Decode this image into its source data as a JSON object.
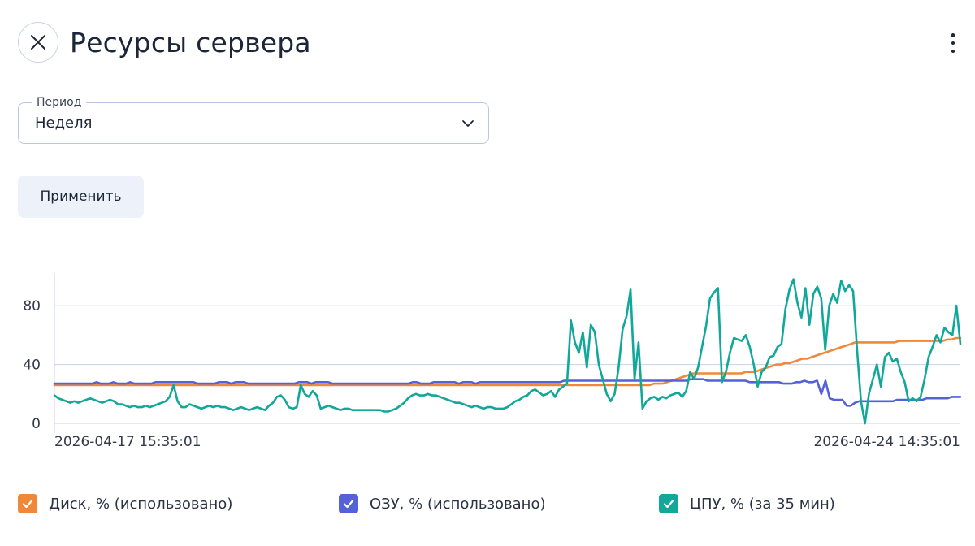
{
  "header": {
    "title": "Ресурсы сервера"
  },
  "period": {
    "legend": "Период",
    "value": "Неделя"
  },
  "apply_label": "Применить",
  "colors": {
    "disk": "#f0883a",
    "ram": "#5461d8",
    "cpu": "#11a89a",
    "grid": "#c6d3e6",
    "axis": "#333a48"
  },
  "legend": [
    {
      "label": "Диск, % (использовано)",
      "color": "#f0883a",
      "checked": true
    },
    {
      "label": "ОЗУ, % (использовано)",
      "color": "#5461d8",
      "checked": true
    },
    {
      "label": "ЦПУ, % (за 35 мин)",
      "color": "#11a89a",
      "checked": true
    }
  ],
  "chart_data": {
    "type": "line",
    "ylim": [
      0,
      100
    ],
    "yticks": [
      0,
      40,
      80
    ],
    "x_start_label": "2026-04-17 15:35:01",
    "x_end_label": "2026-04-24 14:35:01",
    "grid": "horizontal",
    "legend_position": "bottom",
    "sample_interval": "35 min",
    "series": [
      {
        "name": "Диск, % (использовано)",
        "color": "#f0883a",
        "values": [
          26,
          26,
          26,
          26,
          26,
          26,
          26,
          26,
          26,
          26,
          26,
          26,
          26,
          26,
          26,
          26,
          26,
          26,
          26,
          26,
          26,
          26,
          26,
          26,
          26,
          26,
          26,
          26,
          26,
          26,
          26,
          26,
          26,
          26,
          26,
          26,
          26,
          26,
          26,
          26,
          26,
          26,
          26,
          26,
          26,
          26,
          26,
          26,
          26,
          26,
          26,
          26,
          26,
          26,
          26,
          26,
          26,
          26,
          26,
          26,
          26,
          26,
          26,
          26,
          26,
          26,
          26,
          26,
          26,
          26,
          26,
          26,
          26,
          26,
          26,
          26,
          26,
          26,
          26,
          26,
          26,
          26,
          26,
          26,
          26,
          26,
          26,
          26,
          26,
          26,
          26,
          26,
          26,
          26,
          26,
          26,
          26,
          26,
          26,
          26,
          26,
          26,
          26,
          26,
          26,
          26,
          26,
          26,
          26,
          26,
          26,
          26,
          26,
          26,
          26,
          26,
          26,
          26,
          26,
          26,
          26,
          26,
          26,
          26,
          26,
          26,
          26,
          26,
          26,
          26,
          26,
          26,
          26,
          26,
          26,
          26,
          26,
          27,
          27,
          27,
          28,
          29,
          30,
          31,
          32,
          33,
          34,
          34,
          34,
          34,
          34,
          34,
          34,
          34,
          34,
          34,
          34,
          34,
          35,
          35,
          35,
          36,
          37,
          38,
          39,
          40,
          40,
          41,
          41,
          42,
          43,
          44,
          44,
          45,
          46,
          47,
          48,
          49,
          50,
          51,
          52,
          53,
          54,
          55,
          55,
          55,
          55,
          55,
          55,
          55,
          55,
          55,
          55,
          56,
          56,
          56,
          56,
          56,
          56,
          56,
          56,
          56,
          56,
          56,
          57,
          57,
          58,
          58
        ]
      },
      {
        "name": "ОЗУ, % (использовано)",
        "color": "#5461d8",
        "values": [
          27,
          27,
          27,
          27,
          27,
          27,
          27,
          27,
          27,
          27,
          28,
          27,
          27,
          27,
          28,
          27,
          27,
          27,
          28,
          27,
          27,
          27,
          27,
          27,
          28,
          28,
          28,
          28,
          28,
          28,
          28,
          28,
          28,
          28,
          27,
          27,
          27,
          27,
          27,
          28,
          28,
          28,
          27,
          28,
          28,
          28,
          27,
          27,
          27,
          27,
          27,
          27,
          27,
          27,
          27,
          27,
          27,
          27,
          28,
          28,
          28,
          27,
          28,
          28,
          28,
          28,
          27,
          27,
          27,
          27,
          27,
          27,
          27,
          27,
          27,
          27,
          27,
          27,
          27,
          27,
          27,
          27,
          27,
          27,
          27,
          28,
          28,
          27,
          27,
          27,
          28,
          28,
          28,
          28,
          28,
          28,
          27,
          28,
          28,
          28,
          27,
          28,
          28,
          28,
          28,
          28,
          28,
          28,
          28,
          28,
          28,
          28,
          28,
          28,
          28,
          28,
          28,
          28,
          28,
          28,
          28,
          29,
          29,
          29,
          29,
          29,
          29,
          29,
          29,
          29,
          29,
          29,
          29,
          29,
          29,
          29,
          29,
          29,
          29,
          29,
          29,
          29,
          29,
          29,
          29,
          29,
          29,
          29,
          29,
          29,
          29,
          30,
          30,
          30,
          30,
          29,
          29,
          29,
          29,
          29,
          29,
          29,
          29,
          29,
          29,
          28,
          28,
          28,
          28,
          28,
          28,
          28,
          28,
          27,
          27,
          27,
          28,
          28,
          29,
          28,
          28,
          29,
          20,
          29,
          17,
          16,
          16,
          16,
          12,
          12,
          14,
          15,
          15,
          15,
          15,
          15,
          15,
          15,
          15,
          15,
          16,
          16,
          16,
          16,
          16,
          16,
          16,
          17,
          17,
          17,
          17,
          17,
          17,
          18,
          18,
          18
        ]
      },
      {
        "name": "ЦПУ, % (за 35 мин)",
        "color": "#11a89a",
        "values": [
          19,
          17,
          16,
          15,
          14,
          15,
          14,
          15,
          16,
          17,
          16,
          15,
          14,
          15,
          16,
          15,
          13,
          13,
          12,
          11,
          12,
          11,
          11,
          12,
          11,
          12,
          13,
          14,
          15,
          18,
          26,
          15,
          11,
          11,
          13,
          12,
          11,
          10,
          11,
          12,
          11,
          12,
          11,
          11,
          10,
          9,
          10,
          11,
          10,
          9,
          10,
          11,
          10,
          9,
          12,
          14,
          18,
          19,
          16,
          11,
          10,
          11,
          26,
          20,
          18,
          22,
          19,
          10,
          11,
          12,
          11,
          10,
          9,
          10,
          10,
          9,
          9,
          9,
          9,
          9,
          9,
          9,
          9,
          8,
          8,
          9,
          10,
          12,
          14,
          17,
          19,
          20,
          19,
          19,
          20,
          19,
          19,
          18,
          17,
          16,
          15,
          14,
          14,
          13,
          12,
          11,
          12,
          11,
          10,
          11,
          11,
          10,
          10,
          10,
          11,
          13,
          15,
          16,
          18,
          19,
          22,
          23,
          21,
          19,
          20,
          22,
          18,
          23,
          25,
          27,
          70,
          55,
          48,
          62,
          38,
          67,
          62,
          40,
          30,
          20,
          15,
          20,
          38,
          64,
          73,
          91,
          30,
          55,
          10,
          15,
          17,
          18,
          16,
          18,
          17,
          19,
          20,
          21,
          18,
          22,
          35,
          30,
          38,
          52,
          66,
          85,
          89,
          92,
          28,
          35,
          48,
          58,
          57,
          56,
          60,
          52,
          40,
          25,
          35,
          38,
          45,
          46,
          52,
          54,
          78,
          91,
          98,
          82,
          72,
          92,
          67,
          88,
          93,
          85,
          50,
          80,
          88,
          82,
          97,
          90,
          94,
          90,
          50,
          15,
          0,
          20,
          30,
          40,
          25,
          45,
          48,
          42,
          44,
          35,
          28,
          15,
          17,
          15,
          18,
          30,
          45,
          52,
          60,
          55,
          65,
          62,
          60,
          80,
          54
        ]
      }
    ]
  }
}
